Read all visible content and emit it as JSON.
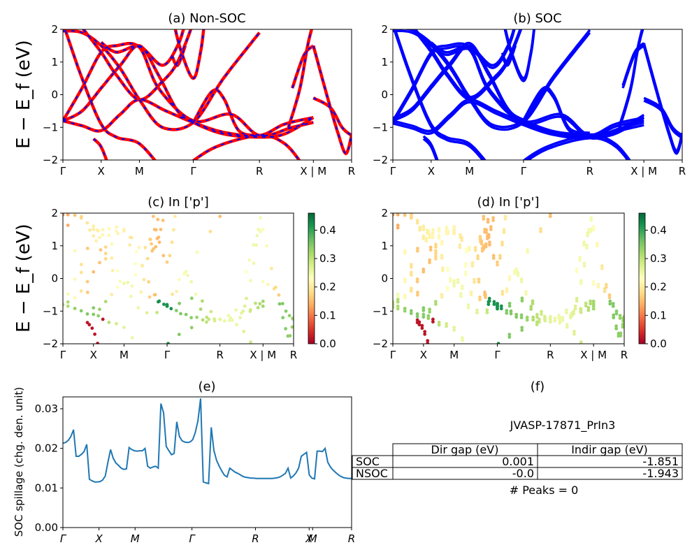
{
  "chart_data": [
    {
      "id": "a",
      "type": "line",
      "title": "(a) Non-SOC",
      "ylabel": "E − E_f (eV)",
      "ylim": [
        -2,
        2
      ],
      "yticks": [
        "−2",
        "−1",
        "0",
        "1",
        "2"
      ],
      "kpath": [
        "Γ",
        "X",
        "M",
        "Γ",
        "R",
        "X | M",
        "R"
      ],
      "style": "red bands with blue dashed overlay"
    },
    {
      "id": "b",
      "type": "line",
      "title": "(b) SOC",
      "ylim": [
        -2,
        2
      ],
      "yticks": [
        "−2",
        "−1",
        "0",
        "1",
        "2"
      ],
      "kpath": [
        "Γ",
        "X",
        "M",
        "Γ",
        "R",
        "X | M",
        "R"
      ],
      "style": "blue bands"
    },
    {
      "id": "c",
      "type": "scatter",
      "title": "(c)  In ['p']",
      "ylabel": "E − E_f (eV)",
      "ylim": [
        -2,
        2
      ],
      "yticks": [
        "−2",
        "−1",
        "0",
        "1",
        "2"
      ],
      "kpath": [
        "Γ",
        "X",
        "M",
        "Γ",
        "R",
        "X | M",
        "R"
      ],
      "colorbar": {
        "ticks": [
          "0.0",
          "0.1",
          "0.2",
          "0.3",
          "0.4"
        ],
        "range": [
          0,
          0.46
        ],
        "cmap": "RdYlGn"
      }
    },
    {
      "id": "d",
      "type": "scatter",
      "title": "(d) In ['p']",
      "ylim": [
        -2,
        2
      ],
      "yticks": [
        "−2",
        "−1",
        "0",
        "1",
        "2"
      ],
      "kpath": [
        "Γ",
        "X",
        "M",
        "Γ",
        "R",
        "X | M",
        "R"
      ],
      "colorbar": {
        "ticks": [
          "0.0",
          "0.1",
          "0.2",
          "0.3",
          "0.4"
        ],
        "range": [
          0,
          0.46
        ],
        "cmap": "RdYlGn"
      }
    },
    {
      "id": "e",
      "type": "line",
      "title": "(e)",
      "ylabel": "SOC spillage (chg. den. unit)",
      "ylim": [
        0,
        0.033
      ],
      "yticks": [
        "0.00",
        "0.01",
        "0.02",
        "0.03"
      ],
      "kpath": [
        "Γ",
        "X",
        "M",
        "Γ",
        "R",
        "X",
        "M",
        "R"
      ],
      "series": [
        {
          "values": [
            0.0213,
            0.0215,
            0.022,
            0.023,
            0.0247,
            0.018,
            0.018,
            0.0185,
            0.0192,
            0.021,
            0.0122,
            0.0118,
            0.0115,
            0.0115,
            0.0116,
            0.012,
            0.013,
            0.0165,
            0.0197,
            0.0175,
            0.0163,
            0.0157,
            0.015,
            0.0147,
            0.0148,
            0.0202,
            0.0197,
            0.0194,
            0.0193,
            0.0194,
            0.0194,
            0.02,
            0.0155,
            0.015,
            0.0153,
            0.0155,
            0.015,
            0.0313,
            0.029,
            0.0205,
            0.0194,
            0.0184,
            0.0187,
            0.0267,
            0.023,
            0.0219,
            0.0216,
            0.0215,
            0.0216,
            0.0222,
            0.024,
            0.027,
            0.0326,
            0.0115,
            0.0113,
            0.0111,
            0.0253,
            0.0195,
            0.017,
            0.0155,
            0.0143,
            0.0132,
            0.0128,
            0.015,
            0.0145,
            0.014,
            0.0137,
            0.0133,
            0.0129,
            0.0127,
            0.0126,
            0.0125,
            0.0125,
            0.0124,
            0.0124,
            0.0124,
            0.0124,
            0.0124,
            0.0124,
            0.0124,
            0.0125,
            0.0126,
            0.0128,
            0.0132,
            0.0137,
            0.015,
            0.0125,
            0.013,
            0.0138,
            0.015,
            0.018,
            0.0185,
            0.019,
            0.0133,
            0.0125,
            0.0123,
            0.0193,
            0.0193,
            0.0192,
            0.02,
            0.0165,
            0.0153,
            0.0145,
            0.0139,
            0.0133,
            0.0129,
            0.0126,
            0.0125,
            0.0124,
            0.0124
          ]
        }
      ]
    }
  ],
  "panel_f": {
    "title": "(f)",
    "subtitle": "JVASP-17871_PrIn3",
    "columns": [
      "Dir gap (eV)",
      "Indir gap (eV)"
    ],
    "rows": [
      {
        "label": "SOC",
        "dir": "0.001",
        "indir": "-1.851"
      },
      {
        "label": "NSOC",
        "dir": "-0.0",
        "indir": "-1.943"
      }
    ],
    "footer": "# Peaks = 0"
  },
  "colors": {
    "soc_line": "#0000ff",
    "nsoc_line": "#ff0000",
    "spillage_line": "#1f77b4"
  }
}
